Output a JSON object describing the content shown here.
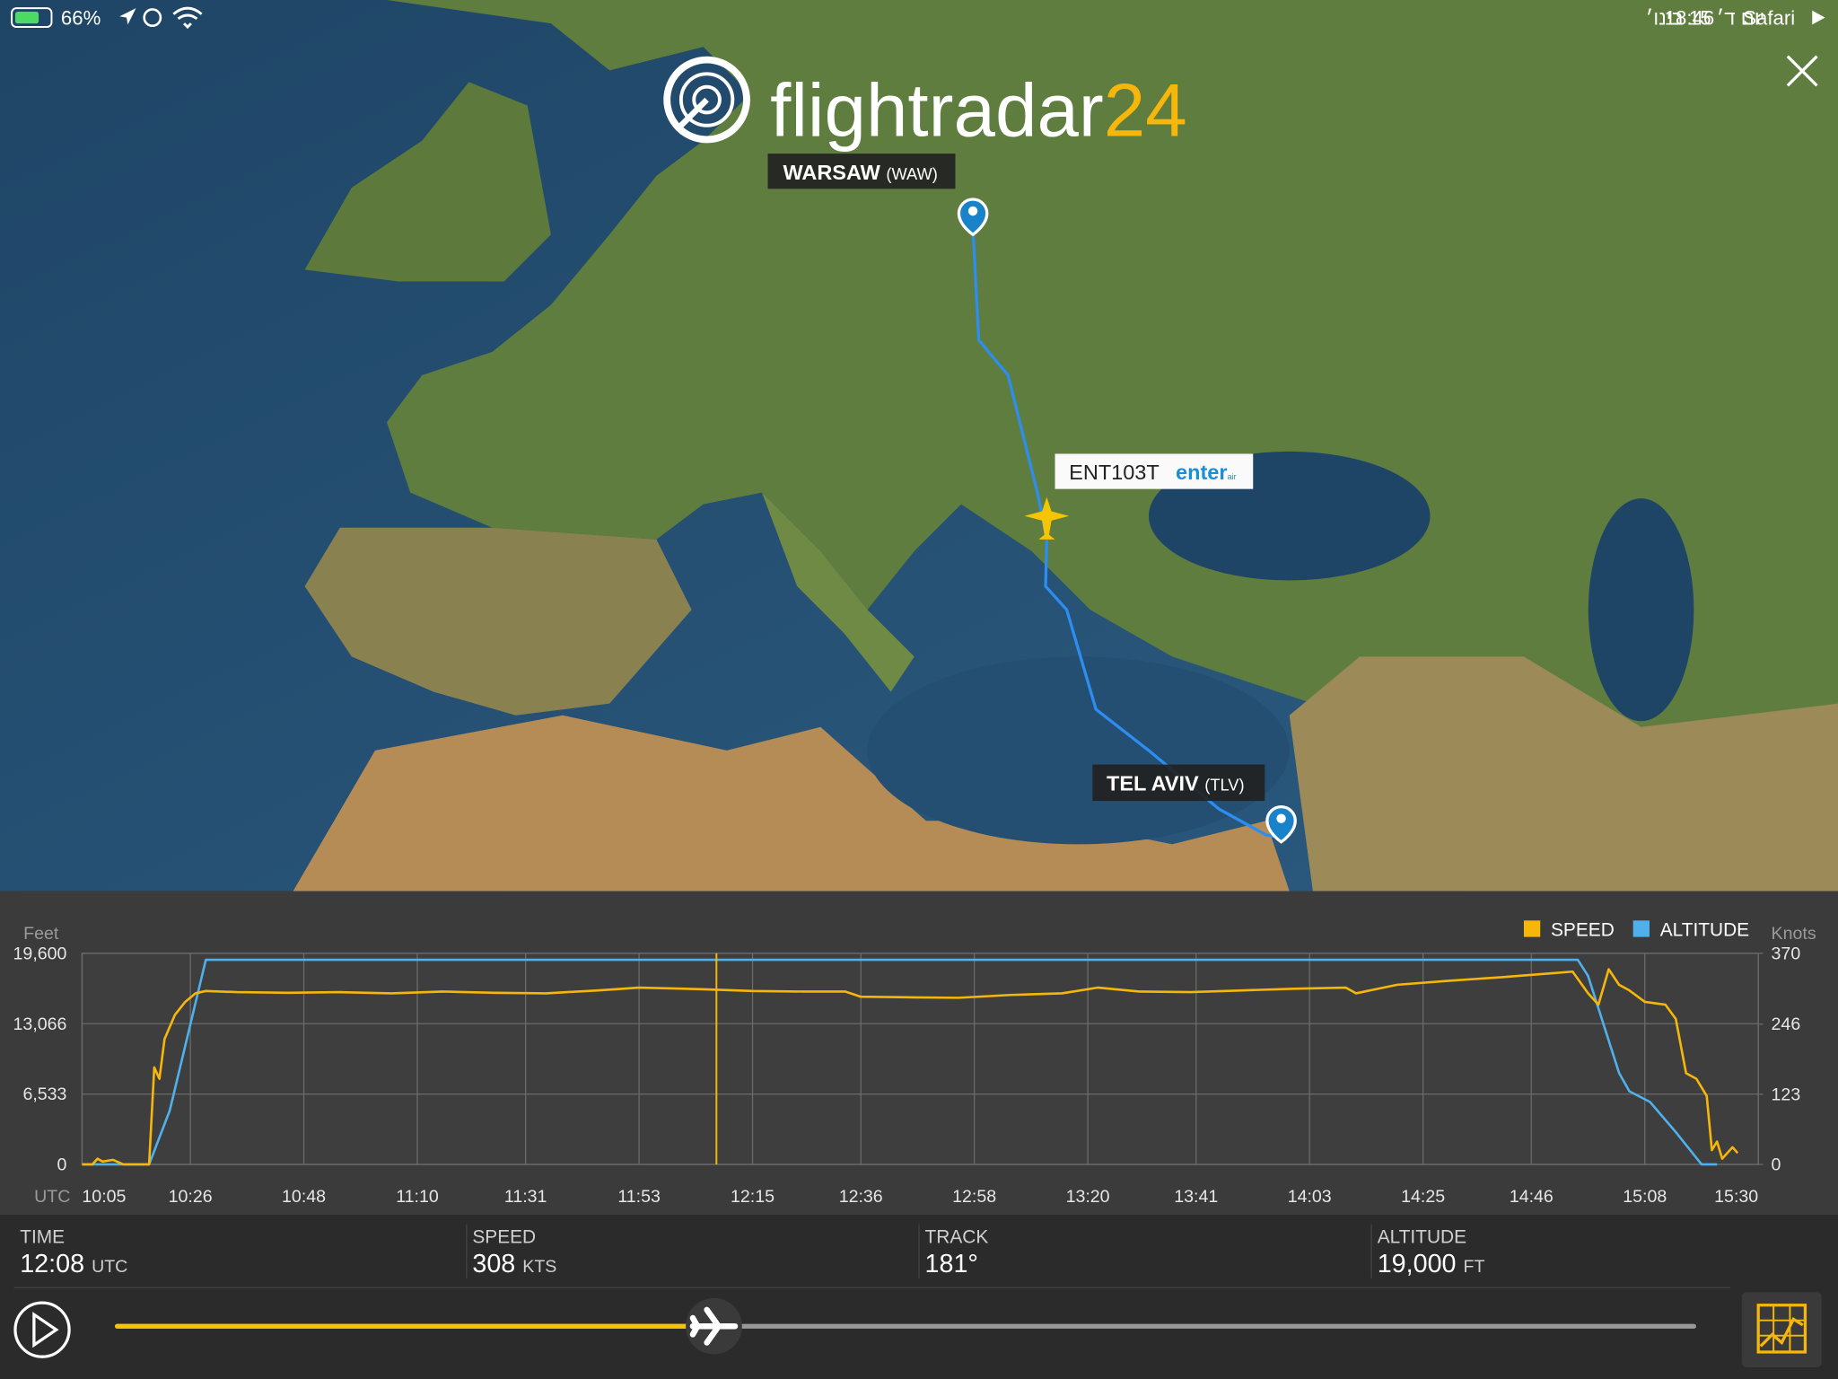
{
  "status_bar": {
    "battery": "66%",
    "date": "יום ד׳ 15 בינו׳",
    "time": "18:46",
    "app": "Safari"
  },
  "logo": {
    "name": "flightradar",
    "number": "24"
  },
  "map": {
    "origin": {
      "city": "WARSAW",
      "code": "(WAW)"
    },
    "destination": {
      "city": "TEL AVIV",
      "code": "(TLV)"
    },
    "flight": {
      "callsign": "ENT103T",
      "airline": "enter",
      "airline_suffix": "air"
    }
  },
  "chart_data": {
    "type": "line",
    "x_label": "UTC",
    "y_label": "Feet",
    "y2_label": "Knots",
    "xlim": [
      "10:05",
      "15:30"
    ],
    "xticks": [
      "10:05",
      "10:26",
      "10:48",
      "11:10",
      "11:31",
      "11:53",
      "12:15",
      "12:36",
      "12:58",
      "13:20",
      "13:41",
      "14:03",
      "14:25",
      "14:46",
      "15:08",
      "15:30"
    ],
    "ylim": [
      0,
      19600
    ],
    "yticks": [
      0,
      {
        "value": 6533,
        "label": "6,533"
      },
      {
        "value": 13066,
        "label": "13,066"
      },
      {
        "value": 19600,
        "label": "19,600"
      }
    ],
    "y2lim": [
      0,
      370
    ],
    "y2ticks": [
      0,
      123,
      246,
      370
    ],
    "grid": true,
    "legend": "top-right",
    "series": [
      {
        "name": "SPEED",
        "color": "#f6b70a",
        "axis": "y2",
        "x": [
          "10:05",
          "10:07",
          "10:08",
          "10:09",
          "10:11",
          "10:13",
          "10:18",
          "10:19",
          "10:20",
          "10:21",
          "10:23",
          "10:25",
          "10:27",
          "10:29",
          "10:35",
          "10:45",
          "10:55",
          "11:05",
          "11:15",
          "11:25",
          "11:35",
          "11:45",
          "11:53",
          "12:05",
          "12:15",
          "12:25",
          "12:33",
          "12:36",
          "12:45",
          "12:55",
          "13:05",
          "13:15",
          "13:22",
          "13:30",
          "13:40",
          "13:50",
          "14:00",
          "14:10",
          "14:12",
          "14:20",
          "14:30",
          "14:40",
          "14:50",
          "14:54",
          "14:57",
          "14:59",
          "15:01",
          "15:03",
          "15:05",
          "15:08",
          "15:12",
          "15:14",
          "15:16",
          "15:18",
          "15:20",
          "15:21",
          "15:22",
          "15:23",
          "15:25",
          "15:26"
        ],
        "values": [
          0,
          0,
          10,
          5,
          8,
          0,
          0,
          170,
          150,
          220,
          262,
          285,
          300,
          304,
          302,
          301,
          302,
          300,
          303,
          301,
          300,
          305,
          310,
          307,
          304,
          303,
          303,
          294,
          293,
          292,
          297,
          300,
          310,
          303,
          302,
          305,
          308,
          310,
          300,
          315,
          322,
          328,
          335,
          338,
          300,
          280,
          342,
          315,
          305,
          285,
          280,
          255,
          160,
          150,
          120,
          25,
          40,
          10,
          30,
          20
        ]
      },
      {
        "name": "ALTITUDE",
        "color": "#4fb0ec",
        "x": [
          "10:05",
          "10:18",
          "10:22",
          "10:25",
          "10:27",
          "10:29",
          "14:55",
          "14:57",
          "15:00",
          "15:03",
          "15:05",
          "15:09",
          "15:14",
          "15:19",
          "15:22"
        ],
        "values": [
          0,
          0,
          5000,
          11000,
          15000,
          19000,
          19000,
          17500,
          13000,
          8500,
          6800,
          5800,
          3000,
          0,
          0
        ]
      }
    ]
  },
  "info": {
    "time": {
      "label": "TIME",
      "value": "12:08",
      "unit": "UTC"
    },
    "speed": {
      "label": "SPEED",
      "value": "308",
      "unit": "KTS"
    },
    "track": {
      "label": "TRACK",
      "value": "181°"
    },
    "altitude": {
      "label": "ALTITUDE",
      "value": "19,000",
      "unit": "FT"
    }
  }
}
